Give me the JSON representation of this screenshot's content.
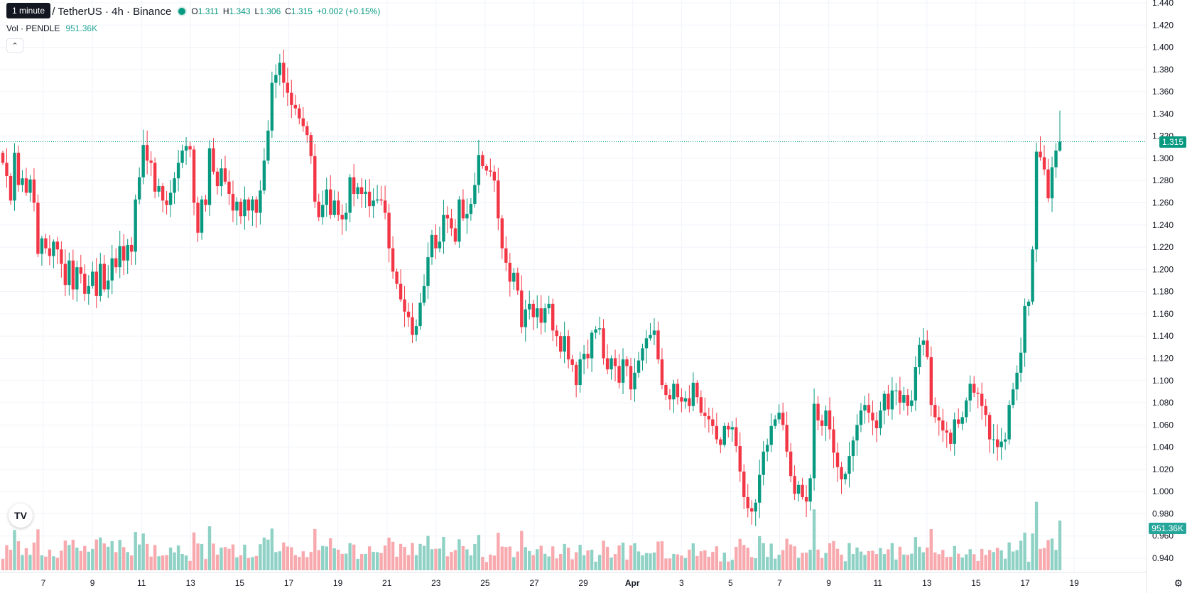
{
  "header": {
    "symbol": "PENDLE / TetherUS · 4h · Binance",
    "tooltip": "1 minute",
    "ohlc": {
      "o_label": "O",
      "o": "1.311",
      "h_label": "H",
      "h": "1.343",
      "l_label": "L",
      "l": "1.306",
      "c_label": "C",
      "c": "1.315",
      "change": "+0.002 (+0.15%)"
    },
    "volume_label": "Vol · PENDLE",
    "volume_value": "951.36K",
    "collapse_icon": "chevron-up-icon"
  },
  "price_axis": {
    "labels": [
      "1.440",
      "1.420",
      "1.400",
      "1.380",
      "1.360",
      "1.340",
      "1.320",
      "1.300",
      "1.280",
      "1.260",
      "1.240",
      "1.220",
      "1.200",
      "1.180",
      "1.160",
      "1.140",
      "1.120",
      "1.100",
      "1.080",
      "1.060",
      "1.040",
      "1.020",
      "1.000",
      "0.980",
      "0.960",
      "0.940"
    ],
    "current_price": "1.315",
    "current_volume": "951.36K"
  },
  "time_axis": {
    "labels": [
      "7",
      "9",
      "11",
      "13",
      "15",
      "17",
      "19",
      "21",
      "23",
      "25",
      "27",
      "29",
      "Apr",
      "3",
      "5",
      "7",
      "9",
      "11",
      "13",
      "15",
      "17",
      "19"
    ]
  },
  "colors": {
    "up": "#089981",
    "down": "#f23645",
    "up_vol": "#8fd2c5",
    "down_vol": "#f7a9ae",
    "grid": "#f0f3fa"
  },
  "chart_data": {
    "type": "candlestick",
    "title": "PENDLE / TetherUS · 4h · Binance",
    "y_range": [
      0.93,
      1.44
    ],
    "last": {
      "o": 1.311,
      "h": 1.343,
      "l": 1.306,
      "c": 1.315
    },
    "volume_last": "951.36K",
    "closes": [
      1.296,
      1.284,
      1.262,
      1.305,
      1.276,
      1.282,
      1.269,
      1.281,
      1.26,
      1.214,
      1.228,
      1.219,
      1.212,
      1.225,
      1.218,
      1.205,
      1.186,
      1.208,
      1.182,
      1.202,
      1.196,
      1.178,
      1.185,
      1.198,
      1.176,
      1.205,
      1.182,
      1.19,
      1.21,
      1.202,
      1.221,
      1.208,
      1.222,
      1.216,
      1.263,
      1.283,
      1.312,
      1.298,
      1.296,
      1.27,
      1.275,
      1.262,
      1.258,
      1.269,
      1.282,
      1.296,
      1.307,
      1.311,
      1.308,
      1.26,
      1.233,
      1.263,
      1.258,
      1.309,
      1.288,
      1.275,
      1.291,
      1.279,
      1.268,
      1.253,
      1.261,
      1.248,
      1.263,
      1.253,
      1.263,
      1.251,
      1.271,
      1.298,
      1.325,
      1.368,
      1.375,
      1.386,
      1.368,
      1.359,
      1.348,
      1.345,
      1.336,
      1.329,
      1.321,
      1.302,
      1.261,
      1.247,
      1.258,
      1.272,
      1.249,
      1.262,
      1.249,
      1.245,
      1.251,
      1.283,
      1.268,
      1.274,
      1.268,
      1.27,
      1.257,
      1.262,
      1.263,
      1.262,
      1.251,
      1.219,
      1.198,
      1.187,
      1.173,
      1.162,
      1.157,
      1.141,
      1.149,
      1.17,
      1.185,
      1.211,
      1.231,
      1.219,
      1.225,
      1.249,
      1.246,
      1.237,
      1.225,
      1.263,
      1.246,
      1.25,
      1.259,
      1.276,
      1.303,
      1.293,
      1.289,
      1.288,
      1.28,
      1.246,
      1.219,
      1.206,
      1.189,
      1.197,
      1.181,
      1.148,
      1.164,
      1.169,
      1.157,
      1.165,
      1.152,
      1.165,
      1.169,
      1.145,
      1.14,
      1.126,
      1.14,
      1.119,
      1.114,
      1.096,
      1.119,
      1.124,
      1.12,
      1.143,
      1.146,
      1.147,
      1.12,
      1.11,
      1.12,
      1.113,
      1.098,
      1.119,
      1.113,
      1.092,
      1.107,
      1.118,
      1.129,
      1.138,
      1.141,
      1.145,
      1.119,
      1.096,
      1.087,
      1.083,
      1.097,
      1.085,
      1.081,
      1.084,
      1.077,
      1.098,
      1.085,
      1.071,
      1.068,
      1.065,
      1.059,
      1.047,
      1.042,
      1.059,
      1.056,
      1.058,
      1.041,
      1.018,
      0.995,
      0.985,
      0.982,
      0.99,
      1.015,
      1.036,
      1.042,
      1.059,
      1.065,
      1.071,
      1.06,
      1.036,
      1.014,
      0.998,
      1.006,
      0.995,
      0.991,
      1.012,
      1.079,
      1.064,
      1.059,
      1.073,
      1.056,
      1.035,
      1.022,
      1.011,
      1.016,
      1.032,
      1.046,
      1.06,
      1.073,
      1.078,
      1.071,
      1.064,
      1.057,
      1.073,
      1.088,
      1.074,
      1.091,
      1.091,
      1.08,
      1.087,
      1.077,
      1.082,
      1.112,
      1.132,
      1.136,
      1.121,
      1.078,
      1.067,
      1.064,
      1.055,
      1.053,
      1.043,
      1.065,
      1.061,
      1.067,
      1.082,
      1.097,
      1.089,
      1.088,
      1.077,
      1.069,
      1.047,
      1.047,
      1.04,
      1.045,
      1.047,
      1.078,
      1.092,
      1.107,
      1.125,
      1.167,
      1.171,
      1.218,
      1.306,
      1.301,
      1.29,
      1.264,
      1.292,
      1.307,
      1.315
    ]
  }
}
